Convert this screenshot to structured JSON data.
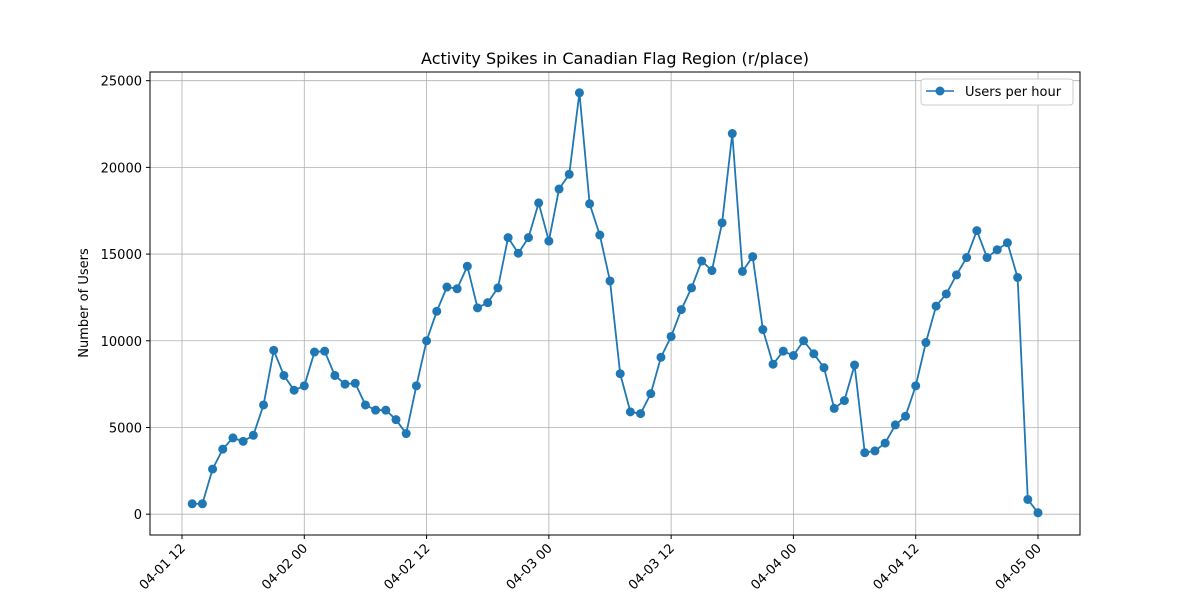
{
  "chart_data": {
    "type": "line",
    "title": "Activity Spikes in Canadian Flag Region (r/place)",
    "xlabel": "",
    "ylabel": "Number of Users",
    "x_start": "2022-04-01 13:00",
    "x_step_hours": 1,
    "x_tick_labels": [
      "04-01 12",
      "04-02 00",
      "04-02 12",
      "04-03 00",
      "04-03 12",
      "04-04 00",
      "04-04 12",
      "04-05 00"
    ],
    "y_ticks": [
      0,
      5000,
      10000,
      15000,
      20000,
      25000
    ],
    "ylim": [
      -1200,
      25500
    ],
    "grid": true,
    "legend": "top-right",
    "series": [
      {
        "name": "Users per hour",
        "color": "#1f77b4",
        "values": [
          600,
          600,
          2600,
          3750,
          4400,
          4200,
          4550,
          6300,
          9450,
          8000,
          7150,
          7400,
          9350,
          9400,
          8000,
          7500,
          7550,
          6300,
          6000,
          6000,
          5450,
          4650,
          7400,
          10000,
          11700,
          13100,
          13000,
          14300,
          11900,
          12200,
          13050,
          15950,
          15050,
          15950,
          17950,
          15750,
          18750,
          19600,
          24300,
          17900,
          16100,
          13450,
          8100,
          5900,
          5800,
          6950,
          9050,
          10250,
          11800,
          13050,
          14600,
          14050,
          16800,
          21950,
          14000,
          14850,
          10650,
          8650,
          9400,
          9150,
          10000,
          9250,
          8450,
          6100,
          6550,
          8600,
          3550,
          3650,
          4100,
          5150,
          5650,
          7400,
          9900,
          12000,
          12700,
          13800,
          14800,
          16350,
          14800,
          15250,
          15650,
          13650,
          850,
          80
        ]
      }
    ]
  }
}
